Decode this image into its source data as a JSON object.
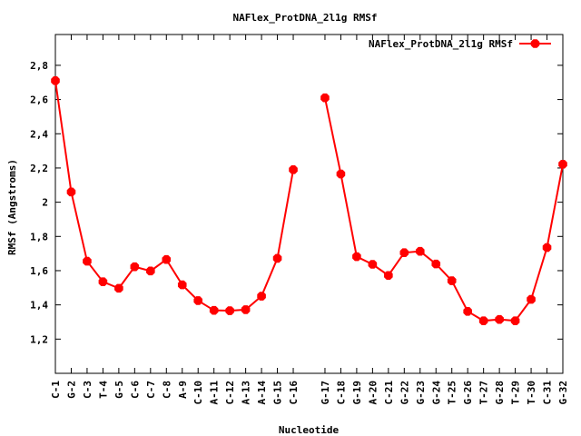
{
  "chart_data": {
    "type": "line",
    "title": "NAFlex_ProtDNA_2l1g RMSf",
    "xlabel": "Nucleotide",
    "ylabel": "RMSf (Angstroms)",
    "legend": {
      "placement": "top-right",
      "entries": [
        "NAFlex_ProtDNA_2l1g RMSf"
      ]
    },
    "grid": false,
    "ylim": [
      1.0,
      2.98
    ],
    "xlim": [
      1,
      33
    ],
    "y_ticks": [
      "1,2",
      "1,4",
      "1,6",
      "1,8",
      "2",
      "2,2",
      "2,4",
      "2,6",
      "2,8"
    ],
    "y_tick_values": [
      1.2,
      1.4,
      1.6,
      1.8,
      2.0,
      2.2,
      2.4,
      2.6,
      2.8
    ],
    "categories": [
      "C-1",
      "G-2",
      "C-3",
      "T-4",
      "G-5",
      "C-6",
      "C-7",
      "C-8",
      "A-9",
      "C-10",
      "A-11",
      "C-12",
      "A-13",
      "A-14",
      "G-15",
      "C-16",
      "G-17",
      "C-18",
      "G-19",
      "A-20",
      "C-21",
      "G-22",
      "G-23",
      "G-24",
      "T-25",
      "G-26",
      "T-27",
      "G-28",
      "T-29",
      "T-30",
      "C-31",
      "G-32"
    ],
    "x_positions": [
      1,
      2,
      3,
      4,
      5,
      6,
      7,
      8,
      9,
      10,
      11,
      12,
      13,
      14,
      15,
      16,
      18,
      19,
      20,
      21,
      22,
      23,
      24,
      25,
      26,
      27,
      28,
      29,
      30,
      31,
      32,
      33
    ],
    "series": [
      {
        "name": "NAFlex_ProtDNA_2l1g RMSf",
        "color": "#ff0000",
        "segments": [
          [
            2.71,
            2.06,
            1.655,
            1.535,
            1.497,
            1.623,
            1.598,
            1.665,
            1.517,
            1.425,
            1.368,
            1.366,
            1.372,
            1.451,
            1.672,
            2.19
          ],
          [
            2.61,
            2.165,
            1.682,
            1.637,
            1.572,
            1.705,
            1.713,
            1.639,
            1.541,
            1.362,
            1.307,
            1.315,
            1.307,
            1.432,
            1.735,
            2.222
          ]
        ]
      }
    ]
  }
}
